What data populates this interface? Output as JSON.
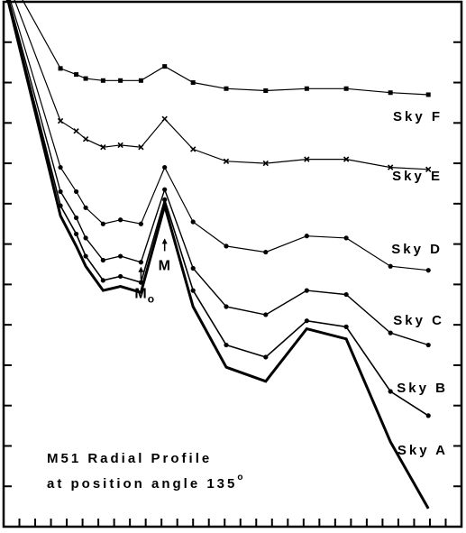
{
  "chart_data": {
    "type": "line",
    "title_line1": "M51 Radial Profile",
    "title_line2": "at position angle 135",
    "title_sup": "o",
    "xlabel": "",
    "ylabel": "",
    "xlim": [
      0,
      29
    ],
    "ylim": [
      0,
      26
    ],
    "x_ticks": [
      1,
      2,
      3,
      4,
      5,
      6,
      7,
      8,
      9,
      10,
      11,
      12,
      13,
      14,
      15,
      16,
      17,
      18,
      19,
      20,
      21,
      22,
      23,
      24,
      25,
      26,
      27,
      28
    ],
    "y_ticks": [
      0,
      2,
      4,
      6,
      8,
      10,
      12,
      14,
      16,
      18,
      20,
      22,
      24,
      26
    ],
    "grid": false,
    "annotations": [
      {
        "text": "M",
        "sub": "o",
        "x": 8.7,
        "y": 12.7
      },
      {
        "text": "M",
        "sub": "",
        "x": 10.2,
        "y": 14.1
      }
    ],
    "series": [
      {
        "name": "Sky F",
        "x": [
          0.2,
          3.6,
          4.6,
          5.2,
          6.3,
          7.4,
          8.7,
          10.2,
          12.0,
          14.1,
          16.6,
          19.2,
          21.7,
          24.5,
          26.9
        ],
        "y": [
          27.5,
          22.7,
          22.4,
          22.2,
          22.1,
          22.1,
          22.1,
          22.8,
          22.0,
          21.7,
          21.6,
          21.7,
          21.7,
          21.5,
          21.4
        ]
      },
      {
        "name": "Sky E",
        "x": [
          0.3,
          3.6,
          4.6,
          5.2,
          6.3,
          7.4,
          8.7,
          10.2,
          12.0,
          14.1,
          16.6,
          19.2,
          21.7,
          24.5,
          26.9
        ],
        "y": [
          26.9,
          20.1,
          19.6,
          19.2,
          18.8,
          18.9,
          18.8,
          20.2,
          18.7,
          18.1,
          18.0,
          18.2,
          18.2,
          17.8,
          17.7
        ]
      },
      {
        "name": "Sky D",
        "x": [
          0.3,
          3.6,
          4.6,
          5.2,
          6.3,
          7.4,
          8.7,
          10.2,
          12.0,
          14.1,
          16.6,
          19.2,
          21.7,
          24.5,
          26.9
        ],
        "y": [
          26.4,
          17.8,
          16.6,
          15.8,
          15.0,
          15.2,
          15.0,
          17.8,
          15.1,
          13.9,
          13.6,
          14.4,
          14.3,
          12.9,
          12.7
        ]
      },
      {
        "name": "Sky C",
        "x": [
          0.3,
          3.6,
          4.6,
          5.2,
          6.3,
          7.4,
          8.7,
          10.2,
          12.0,
          14.1,
          16.6,
          19.2,
          21.7,
          24.5,
          26.9
        ],
        "y": [
          26.2,
          16.6,
          15.3,
          14.3,
          13.2,
          13.4,
          13.1,
          16.7,
          12.8,
          10.9,
          10.5,
          11.7,
          11.5,
          9.6,
          9.0
        ]
      },
      {
        "name": "Sky B",
        "x": [
          0.3,
          3.6,
          4.6,
          5.2,
          6.3,
          7.4,
          8.7,
          10.2,
          12.0,
          14.1,
          16.6,
          19.2,
          21.7,
          24.5,
          26.9
        ],
        "y": [
          26.1,
          15.9,
          14.5,
          13.4,
          12.2,
          12.4,
          12.1,
          16.2,
          11.7,
          9.0,
          8.4,
          10.2,
          9.9,
          6.7,
          5.5
        ]
      },
      {
        "name": "Sky A",
        "x": [
          0.3,
          3.6,
          4.6,
          5.2,
          6.3,
          7.4,
          8.7,
          10.2,
          12.0,
          14.1,
          16.6,
          19.2,
          21.7,
          24.5,
          26.9
        ],
        "y": [
          26.0,
          15.4,
          13.9,
          12.9,
          11.7,
          11.9,
          11.6,
          15.9,
          10.9,
          7.9,
          7.2,
          9.8,
          9.3,
          4.2,
          0.9
        ]
      }
    ]
  }
}
